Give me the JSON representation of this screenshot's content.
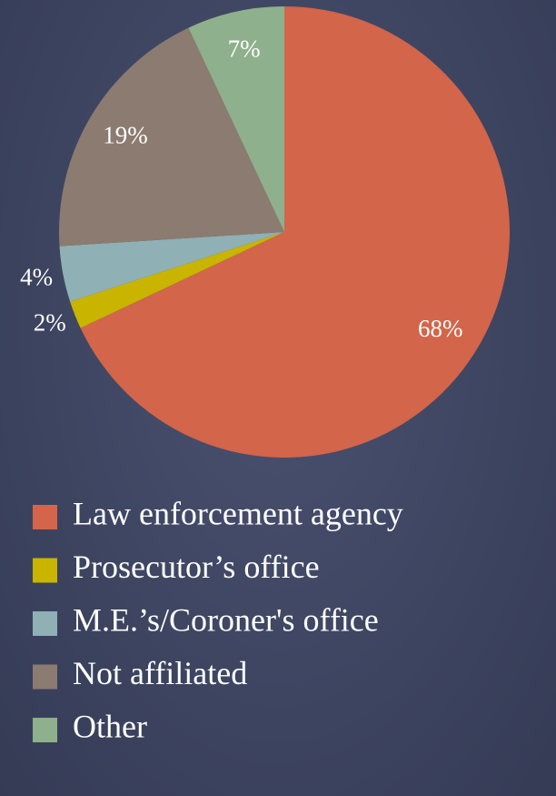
{
  "chart_data": {
    "type": "pie",
    "categories": [
      "Law enforcement agency",
      "Prosecutor’s office",
      "M.E.’s/Coroner's office",
      "Not affiliated",
      "Other"
    ],
    "values": [
      68,
      2,
      4,
      19,
      7
    ],
    "value_labels": [
      "68%",
      "2%",
      "4%",
      "19%",
      "7%"
    ],
    "colors": [
      "#d2654a",
      "#c9b400",
      "#8fb0b4",
      "#8c7b70",
      "#8fb08c"
    ],
    "legend": "bottom"
  }
}
